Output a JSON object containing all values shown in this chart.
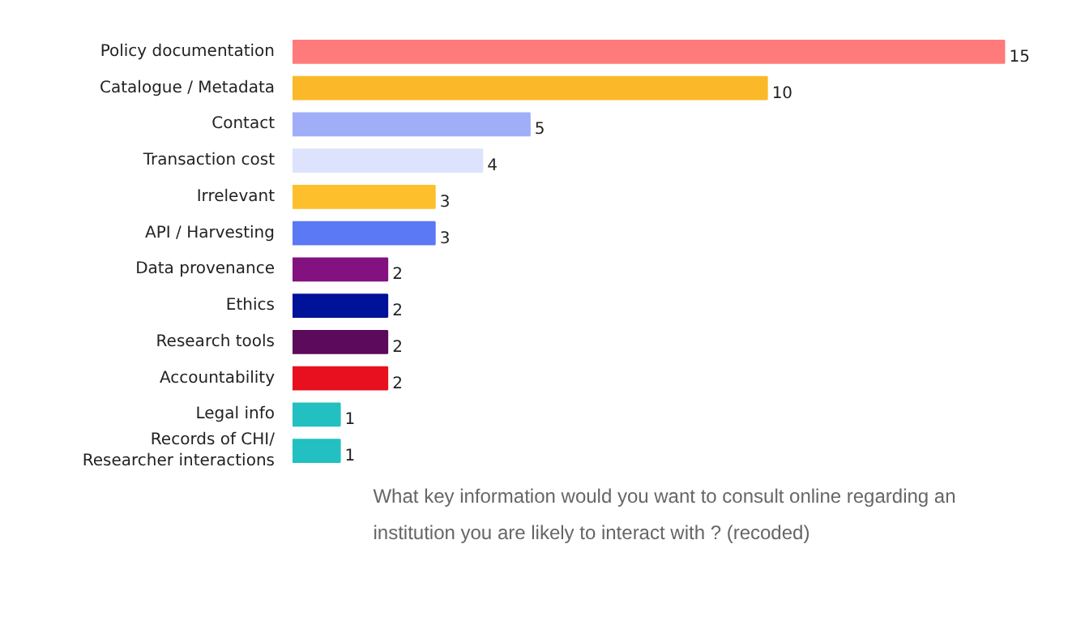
{
  "chart_data": {
    "type": "bar",
    "orientation": "horizontal",
    "data_labels": true,
    "categories": [
      "Policy documentation",
      "Catalogue / Metadata",
      "Contact",
      "Transaction cost",
      "Irrelevant",
      "API / Harvesting",
      "Data provenance",
      "Ethics",
      "Research tools",
      "Accountability",
      "Legal info",
      "Records of CHI/\nResearcher interactions"
    ],
    "values": [
      15,
      10,
      5,
      4,
      3,
      3,
      2,
      2,
      2,
      2,
      1,
      1
    ],
    "colors": [
      "#ff7b7b",
      "#fbb829",
      "#a0aef8",
      "#dde3fc",
      "#fdc02c",
      "#5b78f5",
      "#841180",
      "#00129a",
      "#5c0a5c",
      "#e8101e",
      "#22c0c0",
      "#22c0c0"
    ],
    "annotations": [
      "What key information would you want to consult online regarding an institution you are likely to interact with ? (recoded)"
    ]
  }
}
